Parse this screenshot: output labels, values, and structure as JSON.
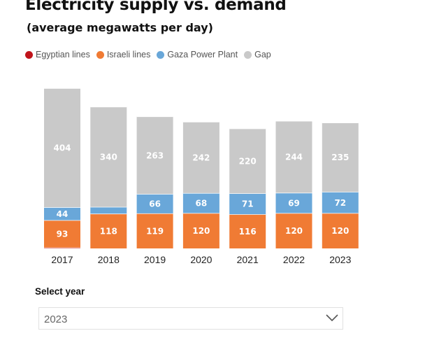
{
  "title": "Electricity supply vs. demand",
  "subtitle": "(average megawatts per day)",
  "legend": [
    {
      "label": "Egyptian lines",
      "color": "#c0141b"
    },
    {
      "label": "Israeli lines",
      "color": "#f07b34"
    },
    {
      "label": "Gaza Power Plant",
      "color": "#69a7d9"
    },
    {
      "label": "Gap",
      "color": "#c9c9c9"
    }
  ],
  "chart_data": {
    "type": "bar",
    "stacked": true,
    "categories": [
      "2017",
      "2018",
      "2019",
      "2020",
      "2021",
      "2022",
      "2023"
    ],
    "series": [
      {
        "name": "Egyptian lines",
        "color": "#c0141b",
        "values": [
          3,
          0,
          0,
          0,
          0,
          0,
          0
        ],
        "labels": [
          "",
          "",
          "",
          "",
          "",
          "",
          ""
        ]
      },
      {
        "name": "Israeli lines",
        "color": "#f07b34",
        "values": [
          93,
          118,
          119,
          120,
          116,
          120,
          120
        ],
        "labels": [
          "93",
          "118",
          "119",
          "120",
          "116",
          "120",
          "120"
        ]
      },
      {
        "name": "Gaza Power Plant",
        "color": "#69a7d9",
        "values": [
          44,
          23,
          66,
          68,
          71,
          69,
          72
        ],
        "labels": [
          "44",
          "",
          "66",
          "68",
          "71",
          "69",
          "72"
        ]
      },
      {
        "name": "Gap",
        "color": "#c9c9c9",
        "values": [
          404,
          340,
          263,
          242,
          220,
          244,
          235
        ],
        "labels": [
          "404",
          "340",
          "263",
          "242",
          "220",
          "244",
          "235"
        ]
      }
    ],
    "ylim": [
      0,
      544
    ],
    "grid": false,
    "legend_position": "top-left"
  },
  "selector": {
    "label": "Select year",
    "value": "2023"
  }
}
